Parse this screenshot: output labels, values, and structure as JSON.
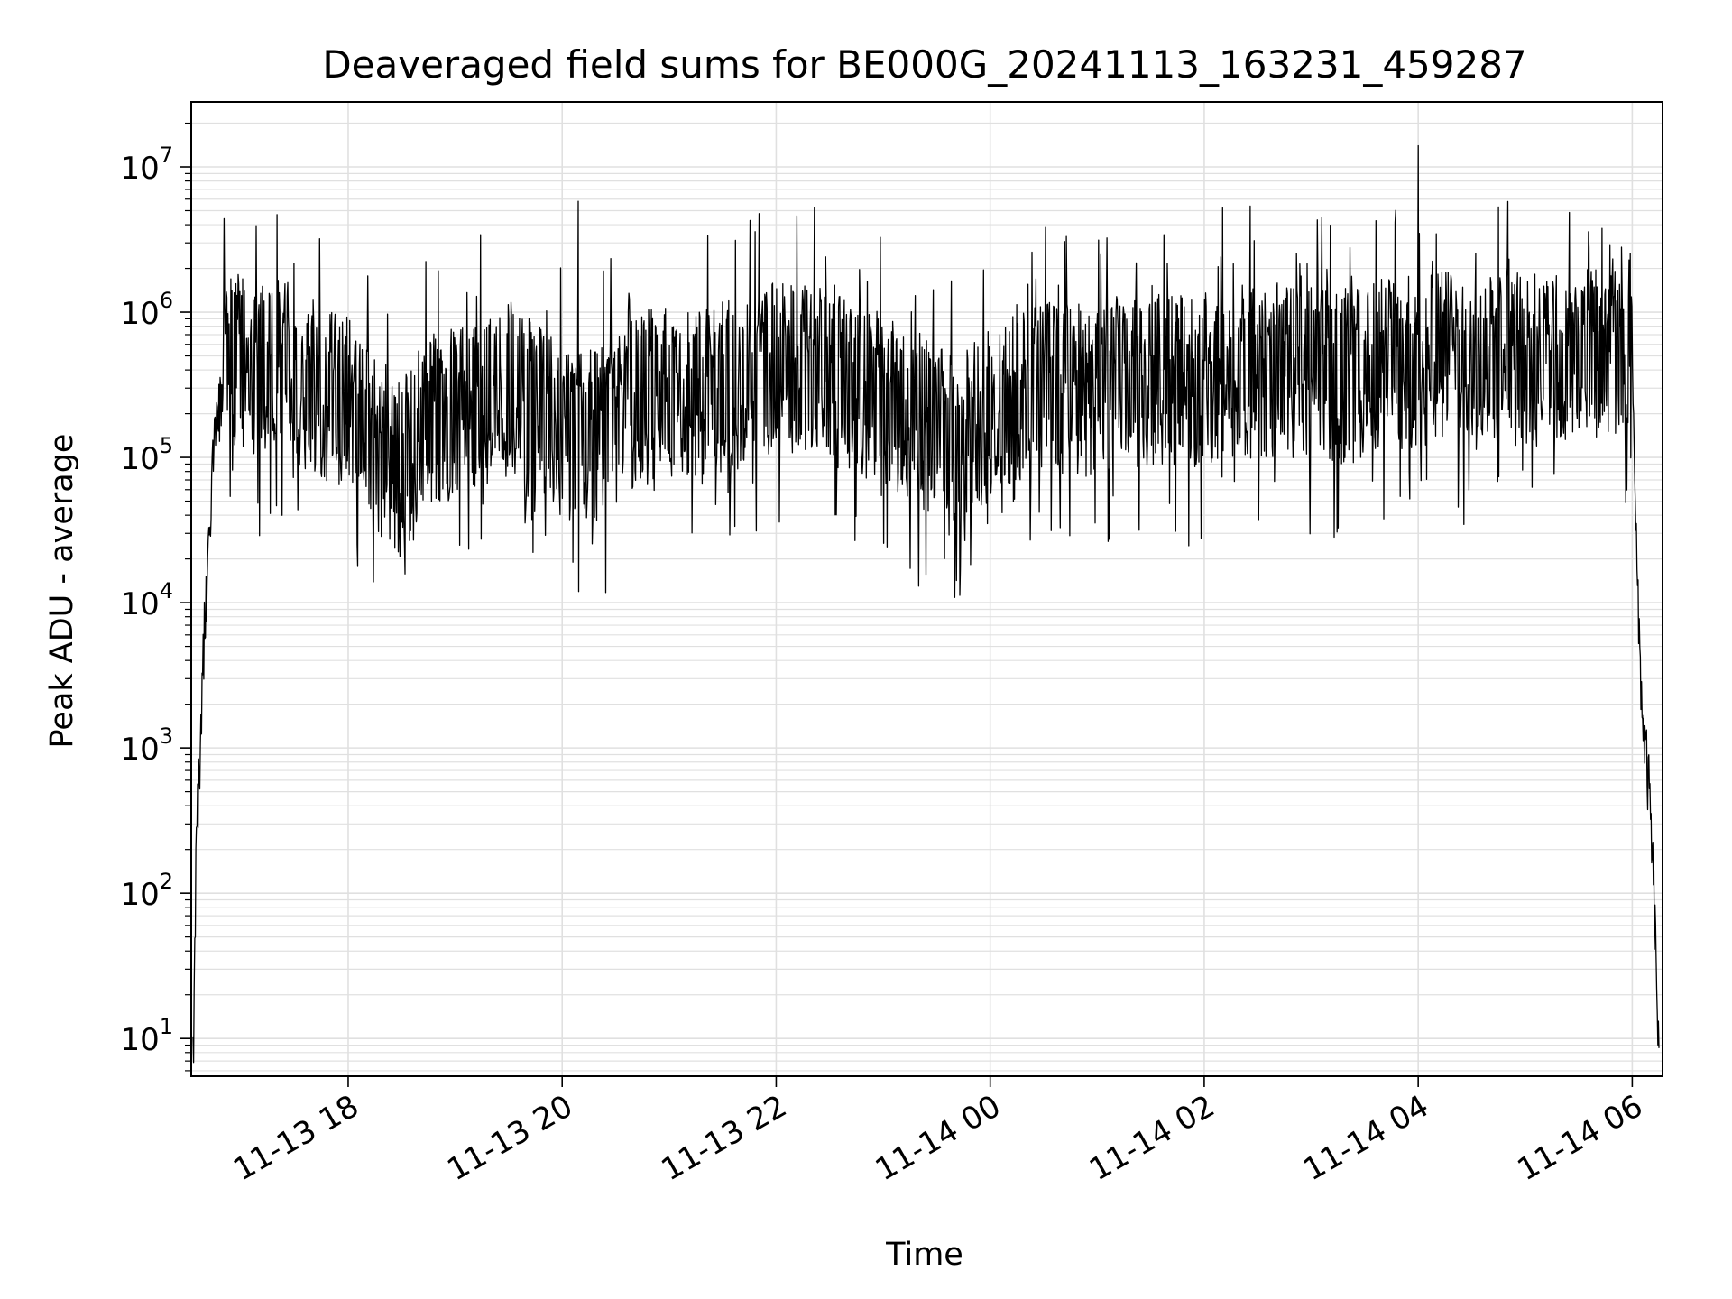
{
  "chart_data": {
    "type": "line",
    "title": "Deaveraged field sums for BE000G_20241113_163231_459287",
    "xlabel": "Time",
    "ylabel": "Peak ADU - average",
    "yscale": "log",
    "ylim": [
      5.5,
      28000000
    ],
    "xlim": [
      "2024-11-13 16:32",
      "2024-11-14 06:17"
    ],
    "grid": true,
    "line_color": "#000000",
    "grid_color": "#e0e0e0",
    "x_tick_labels": [
      "11-13 18",
      "11-13 20",
      "11-13 22",
      "11-14 00",
      "11-14 02",
      "11-14 04",
      "11-14 06"
    ],
    "x_ticks": [
      "2024-11-13 18:00",
      "2024-11-13 20:00",
      "2024-11-13 22:00",
      "2024-11-14 00:00",
      "2024-11-14 02:00",
      "2024-11-14 04:00",
      "2024-11-14 06:00"
    ],
    "y_ticks": [
      {
        "value": 10,
        "base": "10",
        "exp": "1"
      },
      {
        "value": 100,
        "base": "10",
        "exp": "2"
      },
      {
        "value": 1000,
        "base": "10",
        "exp": "3"
      },
      {
        "value": 10000,
        "base": "10",
        "exp": "4"
      },
      {
        "value": 100000,
        "base": "10",
        "exp": "5"
      },
      {
        "value": 1000000,
        "base": "10",
        "exp": "6"
      },
      {
        "value": 10000000,
        "base": "10",
        "exp": "7"
      }
    ],
    "series": [
      {
        "x": [
          "2024-11-13 16:33",
          "2024-11-13 16:35",
          "2024-11-13 16:37",
          "2024-11-13 16:39",
          "2024-11-13 16:42",
          "2024-11-13 16:45",
          "2024-11-13 16:50",
          "2024-11-13 16:55",
          "2024-11-13 17:00",
          "2024-11-13 17:10",
          "2024-11-13 17:20",
          "2024-11-13 17:30",
          "2024-11-13 17:40",
          "2024-11-13 17:50",
          "2024-11-13 18:00",
          "2024-11-13 18:10",
          "2024-11-13 18:20",
          "2024-11-13 18:30",
          "2024-11-13 18:40",
          "2024-11-13 18:50",
          "2024-11-13 19:00",
          "2024-11-13 19:15",
          "2024-11-13 19:30",
          "2024-11-13 19:45",
          "2024-11-13 20:00",
          "2024-11-13 20:10",
          "2024-11-13 20:20",
          "2024-11-13 20:30",
          "2024-11-13 20:45",
          "2024-11-13 21:00",
          "2024-11-13 21:15",
          "2024-11-13 21:30",
          "2024-11-13 21:45",
          "2024-11-13 22:00",
          "2024-11-13 22:15",
          "2024-11-13 22:30",
          "2024-11-13 22:45",
          "2024-11-13 23:00",
          "2024-11-13 23:15",
          "2024-11-13 23:30",
          "2024-11-13 23:45",
          "2024-11-14 00:00",
          "2024-11-14 00:15",
          "2024-11-14 00:30",
          "2024-11-14 00:45",
          "2024-11-14 01:00",
          "2024-11-14 01:15",
          "2024-11-14 01:30",
          "2024-11-14 01:45",
          "2024-11-14 02:00",
          "2024-11-14 02:15",
          "2024-11-14 02:30",
          "2024-11-14 02:45",
          "2024-11-14 03:00",
          "2024-11-14 03:15",
          "2024-11-14 03:30",
          "2024-11-14 03:45",
          "2024-11-14 04:00",
          "2024-11-14 04:15",
          "2024-11-14 04:30",
          "2024-11-14 04:45",
          "2024-11-14 05:00",
          "2024-11-14 05:15",
          "2024-11-14 05:30",
          "2024-11-14 05:45",
          "2024-11-14 06:00",
          "2024-11-14 06:03",
          "2024-11-14 06:06",
          "2024-11-14 06:08",
          "2024-11-14 06:10",
          "2024-11-14 06:12",
          "2024-11-14 06:14",
          "2024-11-14 06:15"
        ],
        "values": [
          6,
          300,
          800,
          5000,
          20000,
          150000,
          300000,
          500000,
          450000,
          400000,
          500000,
          350000,
          300000,
          250000,
          250000,
          150000,
          100000,
          80000,
          150000,
          200000,
          200000,
          250000,
          300000,
          250000,
          150000,
          130000,
          150000,
          180000,
          250000,
          300000,
          250000,
          300000,
          350000,
          450000,
          400000,
          350000,
          300000,
          250000,
          200000,
          150000,
          130000,
          200000,
          250000,
          300000,
          280000,
          300000,
          330000,
          350000,
          330000,
          350000,
          400000,
          380000,
          400000,
          380000,
          350000,
          400000,
          450000,
          450000,
          500000,
          450000,
          450000,
          480000,
          450000,
          500000,
          500000,
          700000,
          10000,
          1500,
          800,
          400,
          100,
          20,
          6
        ]
      }
    ],
    "spikes": [
      {
        "x": "2024-11-13 17:44",
        "value": 3200000
      },
      {
        "x": "2024-11-13 20:09",
        "value": 5800000
      },
      {
        "x": "2024-11-14 04:00",
        "value": 14000000
      },
      {
        "x": "2024-11-14 04:45",
        "value": 5300000
      },
      {
        "x": "2024-11-14 05:54",
        "value": 2800000
      },
      {
        "x": "2024-11-13 18:05",
        "value": 25000
      },
      {
        "x": "2024-11-13 20:06",
        "value": 19000
      },
      {
        "x": "2024-11-14 01:44",
        "value": 31000
      }
    ]
  }
}
